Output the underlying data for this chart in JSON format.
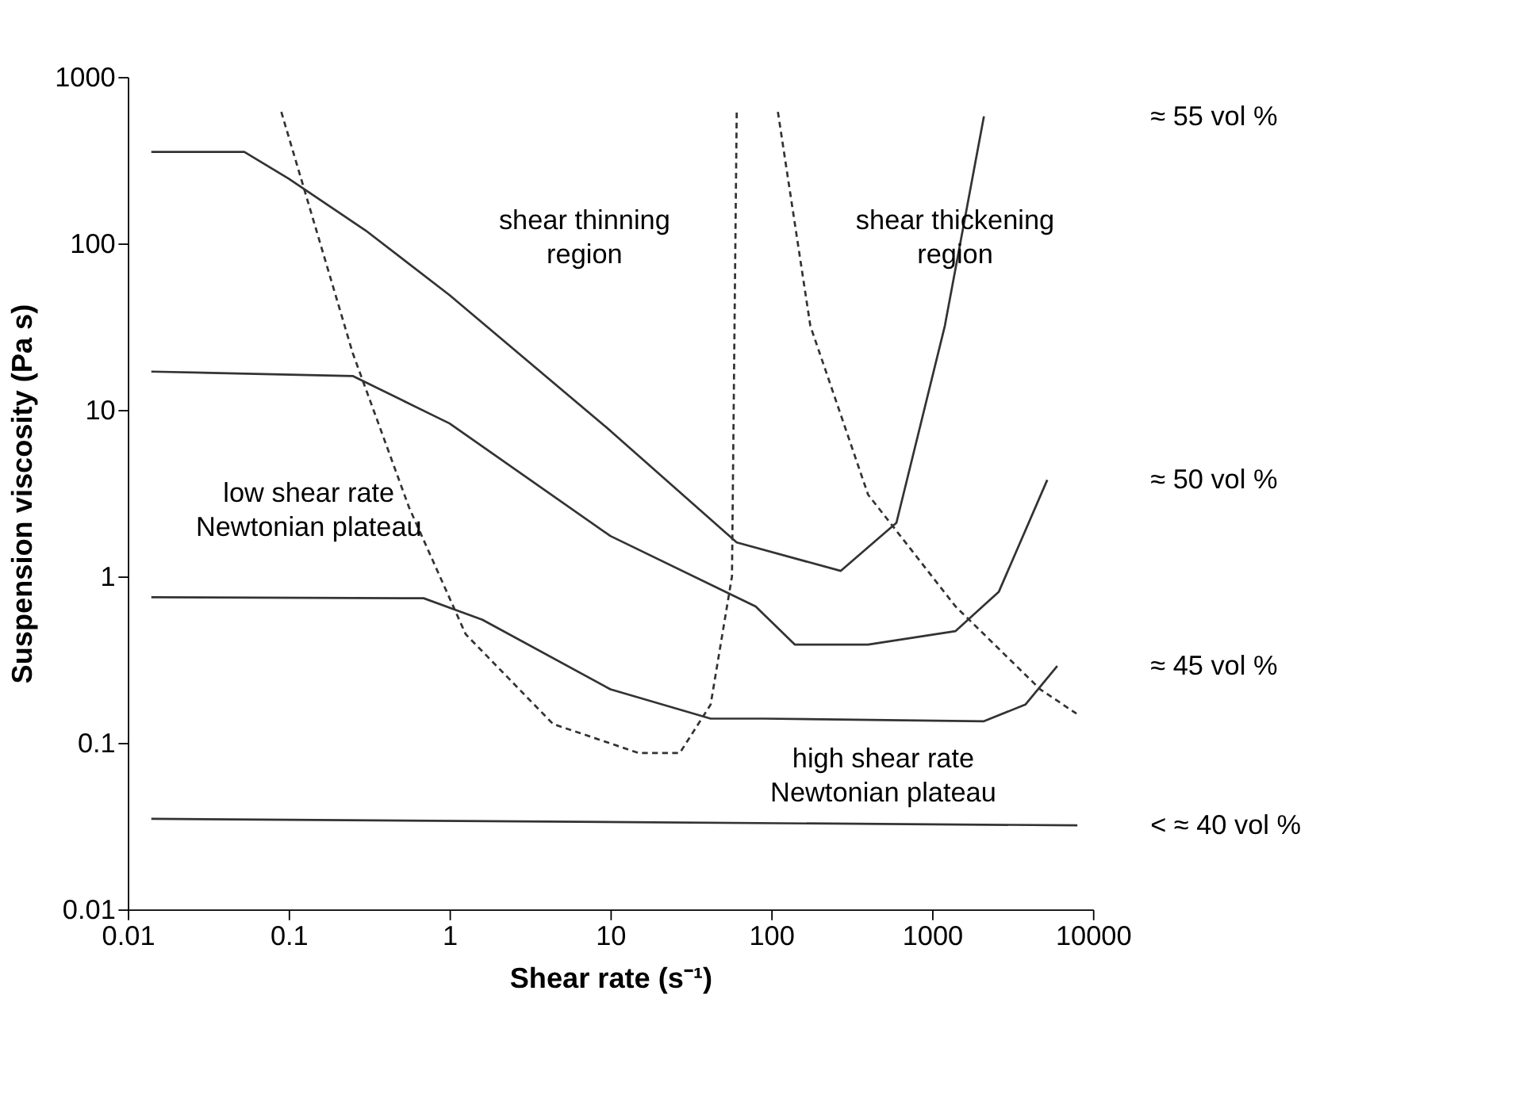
{
  "chart_data": {
    "type": "line",
    "xlabel": "Shear rate (s⁻¹)",
    "ylabel": "Suspension viscosity (Pa s)",
    "log": "xy",
    "grid": false,
    "marker": "none",
    "xlim": [
      0.01,
      10000
    ],
    "ylim": [
      0.01,
      1000
    ],
    "xticks": [
      0.01,
      0.1,
      1,
      10,
      100,
      1000,
      10000
    ],
    "yticks": [
      0.01,
      0.1,
      1,
      10,
      100,
      1000
    ],
    "series": [
      {
        "name": "≈ 55 vol %",
        "color": "#333333",
        "line_style": "solid",
        "x": [
          0.014,
          0.053,
          0.1,
          0.3,
          1,
          10,
          61,
          270,
          600,
          1200,
          2100
        ],
        "values": [
          355,
          355,
          245,
          120,
          49,
          7.5,
          1.6,
          1.08,
          2.1,
          32,
          580
        ]
      },
      {
        "name": "≈ 50 vol %",
        "color": "#333333",
        "line_style": "solid",
        "x": [
          0.014,
          0.25,
          1,
          10,
          80,
          140,
          400,
          1400,
          2600,
          5200
        ],
        "values": [
          17,
          16,
          8.3,
          1.75,
          0.66,
          0.39,
          0.39,
          0.47,
          0.81,
          3.8
        ]
      },
      {
        "name": "≈ 45 vol %",
        "color": "#333333",
        "line_style": "solid",
        "x": [
          0.014,
          0.69,
          1.6,
          10,
          42,
          90,
          2100,
          3800,
          6000
        ],
        "values": [
          0.75,
          0.74,
          0.55,
          0.21,
          0.14,
          0.14,
          0.135,
          0.17,
          0.29
        ]
      },
      {
        "name": "< ≈ 40 vol %",
        "color": "#333333",
        "line_style": "solid",
        "x": [
          0.014,
          8000
        ],
        "values": [
          0.035,
          0.032
        ]
      },
      {
        "color": "#333333",
        "line_style": "dashed",
        "x": [
          0.09,
          0.25,
          0.56,
          1.26,
          4.4,
          15,
          27,
          42,
          57,
          61
        ],
        "values": [
          617,
          22,
          2.6,
          0.45,
          0.13,
          0.087,
          0.087,
          0.17,
          1,
          620
        ]
      },
      {
        "color": "#333333",
        "line_style": "dashed",
        "x": [
          110,
          175,
          400,
          1400,
          4700,
          7900
        ],
        "values": [
          617,
          32,
          3.1,
          0.66,
          0.21,
          0.15
        ]
      }
    ],
    "annotations": [
      "shear thinning\nregion",
      "shear thickening\nregion",
      "low shear rate\nNewtonian plateau",
      "high shear rate\nNewtonian plateau"
    ]
  }
}
